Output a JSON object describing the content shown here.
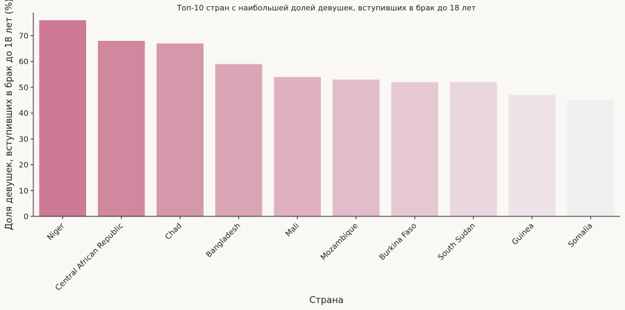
{
  "chart_data": {
    "type": "bar",
    "title": "Топ-10 стран с наибольшей долей девушек, вступивших в брак до 18 лет",
    "xlabel": "Страна",
    "ylabel": "Доля девушек, вступивших в брак до 18 лет (%)",
    "categories": [
      "Niger",
      "Central African Republic",
      "Chad",
      "Bangladesh",
      "Mali",
      "Mozambique",
      "Burkina Faso",
      "South Sudan",
      "Guinea",
      "Somalia"
    ],
    "values": [
      76,
      68,
      67,
      59,
      54,
      53,
      52,
      52,
      47,
      45
    ],
    "ylim": [
      0,
      79
    ],
    "yticks": [
      0,
      10,
      20,
      30,
      40,
      50,
      60,
      70
    ],
    "grid": false,
    "colors": [
      "#cc7a95",
      "#d1889f",
      "#d597aa",
      "#daa5b5",
      "#dfb1c0",
      "#e2bccb",
      "#e6c8d3",
      "#ead6de",
      "#ede3e8",
      "#f1eef0"
    ]
  }
}
